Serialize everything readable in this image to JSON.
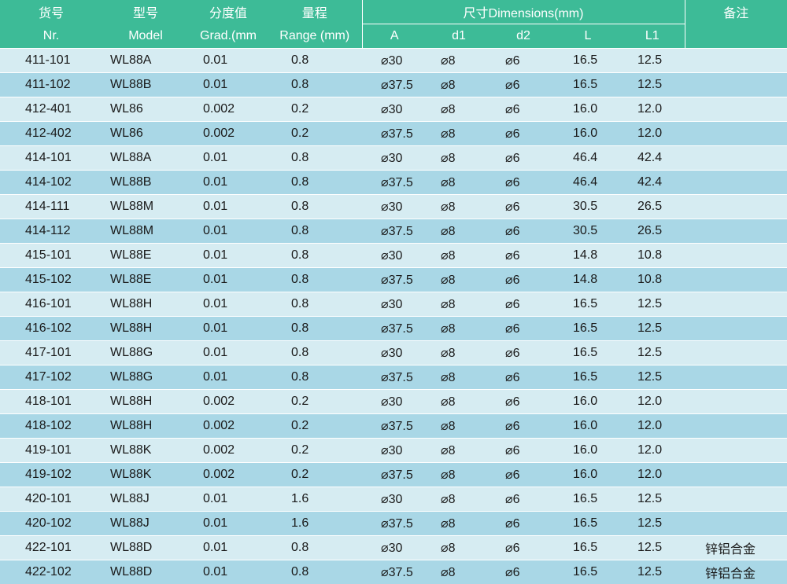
{
  "header": {
    "nr_cn": "货号",
    "nr_en": "Nr.",
    "model_cn": "型号",
    "model_en": "Model",
    "grad_cn": "分度值",
    "grad_en": "Grad.(mm",
    "range_cn": "量程",
    "range_en": "Range (mm)",
    "dimensions": "尺寸Dimensions(mm)",
    "note_cn": "备注",
    "dim_cols": [
      "A",
      "d1",
      "d2",
      "L",
      "L1"
    ]
  },
  "rows": [
    {
      "nr": "411-101",
      "model": "WL88A",
      "grad": "0.01",
      "range": "0.8",
      "a": "⌀30",
      "d1": "⌀8",
      "d2": "⌀6",
      "l": "16.5",
      "l1": "12.5",
      "note": ""
    },
    {
      "nr": "411-102",
      "model": "WL88B",
      "grad": "0.01",
      "range": "0.8",
      "a": "⌀37.5",
      "d1": "⌀8",
      "d2": "⌀6",
      "l": "16.5",
      "l1": "12.5",
      "note": ""
    },
    {
      "nr": "412-401",
      "model": "WL86",
      "grad": "0.002",
      "range": "0.2",
      "a": "⌀30",
      "d1": "⌀8",
      "d2": "⌀6",
      "l": "16.0",
      "l1": "12.0",
      "note": ""
    },
    {
      "nr": "412-402",
      "model": "WL86",
      "grad": "0.002",
      "range": "0.2",
      "a": "⌀37.5",
      "d1": "⌀8",
      "d2": "⌀6",
      "l": "16.0",
      "l1": "12.0",
      "note": ""
    },
    {
      "nr": "414-101",
      "model": "WL88A",
      "grad": "0.01",
      "range": "0.8",
      "a": "⌀30",
      "d1": "⌀8",
      "d2": "⌀6",
      "l": "46.4",
      "l1": "42.4",
      "note": ""
    },
    {
      "nr": "414-102",
      "model": "WL88B",
      "grad": "0.01",
      "range": "0.8",
      "a": "⌀37.5",
      "d1": "⌀8",
      "d2": "⌀6",
      "l": "46.4",
      "l1": "42.4",
      "note": ""
    },
    {
      "nr": "414-111",
      "model": "WL88M",
      "grad": "0.01",
      "range": "0.8",
      "a": "⌀30",
      "d1": "⌀8",
      "d2": "⌀6",
      "l": "30.5",
      "l1": "26.5",
      "note": ""
    },
    {
      "nr": "414-112",
      "model": "WL88M",
      "grad": "0.01",
      "range": "0.8",
      "a": "⌀37.5",
      "d1": "⌀8",
      "d2": "⌀6",
      "l": "30.5",
      "l1": "26.5",
      "note": ""
    },
    {
      "nr": "415-101",
      "model": "WL88E",
      "grad": "0.01",
      "range": "0.8",
      "a": "⌀30",
      "d1": "⌀8",
      "d2": "⌀6",
      "l": "14.8",
      "l1": "10.8",
      "note": ""
    },
    {
      "nr": "415-102",
      "model": "WL88E",
      "grad": "0.01",
      "range": "0.8",
      "a": "⌀37.5",
      "d1": "⌀8",
      "d2": "⌀6",
      "l": "14.8",
      "l1": "10.8",
      "note": ""
    },
    {
      "nr": "416-101",
      "model": "WL88H",
      "grad": "0.01",
      "range": "0.8",
      "a": "⌀30",
      "d1": "⌀8",
      "d2": "⌀6",
      "l": "16.5",
      "l1": "12.5",
      "note": ""
    },
    {
      "nr": "416-102",
      "model": "WL88H",
      "grad": "0.01",
      "range": "0.8",
      "a": "⌀37.5",
      "d1": "⌀8",
      "d2": "⌀6",
      "l": "16.5",
      "l1": "12.5",
      "note": ""
    },
    {
      "nr": "417-101",
      "model": "WL88G",
      "grad": "0.01",
      "range": "0.8",
      "a": "⌀30",
      "d1": "⌀8",
      "d2": "⌀6",
      "l": "16.5",
      "l1": "12.5",
      "note": ""
    },
    {
      "nr": "417-102",
      "model": "WL88G",
      "grad": "0.01",
      "range": "0.8",
      "a": "⌀37.5",
      "d1": "⌀8",
      "d2": "⌀6",
      "l": "16.5",
      "l1": "12.5",
      "note": ""
    },
    {
      "nr": "418-101",
      "model": "WL88H",
      "grad": "0.002",
      "range": "0.2",
      "a": "⌀30",
      "d1": "⌀8",
      "d2": "⌀6",
      "l": "16.0",
      "l1": "12.0",
      "note": ""
    },
    {
      "nr": "418-102",
      "model": "WL88H",
      "grad": "0.002",
      "range": "0.2",
      "a": "⌀37.5",
      "d1": "⌀8",
      "d2": "⌀6",
      "l": "16.0",
      "l1": "12.0",
      "note": ""
    },
    {
      "nr": "419-101",
      "model": "WL88K",
      "grad": "0.002",
      "range": "0.2",
      "a": "⌀30",
      "d1": "⌀8",
      "d2": "⌀6",
      "l": "16.0",
      "l1": "12.0",
      "note": ""
    },
    {
      "nr": "419-102",
      "model": "WL88K",
      "grad": "0.002",
      "range": "0.2",
      "a": "⌀37.5",
      "d1": "⌀8",
      "d2": "⌀6",
      "l": "16.0",
      "l1": "12.0",
      "note": ""
    },
    {
      "nr": "420-101",
      "model": "WL88J",
      "grad": "0.01",
      "range": "1.6",
      "a": "⌀30",
      "d1": "⌀8",
      "d2": "⌀6",
      "l": "16.5",
      "l1": "12.5",
      "note": ""
    },
    {
      "nr": "420-102",
      "model": "WL88J",
      "grad": "0.01",
      "range": "1.6",
      "a": "⌀37.5",
      "d1": "⌀8",
      "d2": "⌀6",
      "l": "16.5",
      "l1": "12.5",
      "note": ""
    },
    {
      "nr": "422-101",
      "model": "WL88D",
      "grad": "0.01",
      "range": "0.8",
      "a": "⌀30",
      "d1": "⌀8",
      "d2": "⌀6",
      "l": "16.5",
      "l1": "12.5",
      "note": "锌铝合金"
    },
    {
      "nr": "422-102",
      "model": "WL88D",
      "grad": "0.01",
      "range": "0.8",
      "a": "⌀37.5",
      "d1": "⌀8",
      "d2": "⌀6",
      "l": "16.5",
      "l1": "12.5",
      "note": "锌铝合金"
    }
  ]
}
